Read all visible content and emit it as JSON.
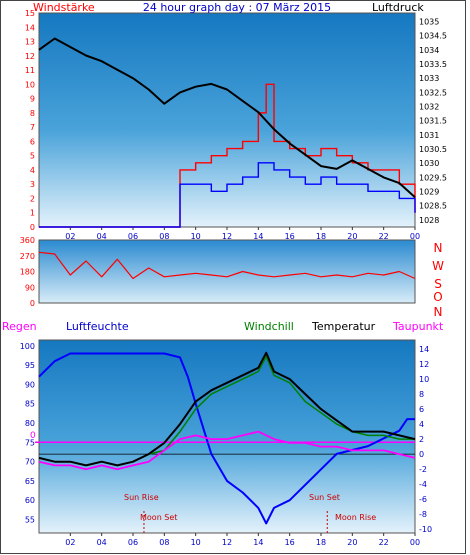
{
  "top_labels": {
    "left": "Windstärke",
    "center": "24 hour graph day : 07 März 2015",
    "right": "Luftdruck"
  },
  "mid_labels": {
    "compass": [
      "N",
      "W",
      "S",
      "O",
      "N"
    ]
  },
  "bottom_labels": {
    "regen": "Regen",
    "luftfeuchte": "Luftfeuchte",
    "windchill": "Windchill",
    "temperatur": "Temperatur",
    "taupunkt": "Taupunkt"
  },
  "annotations": {
    "sun_rise": "Sun Rise",
    "sun_set": "Sun Set",
    "moon_set": "Moon Set",
    "moon_rise": "Moon Rise",
    "zero_mark": "0"
  },
  "colors": {
    "wind_avg": "#ff0000",
    "gust": "#0000ff",
    "pressure": "#000000",
    "dir": "#ff0000",
    "humidity": "#0000ff",
    "windchill": "#008000",
    "temperature": "#000000",
    "dewpoint": "#ff00ff",
    "zero_line": "#ff00ff"
  },
  "chart_data": [
    {
      "type": "line",
      "title": "24 hour graph day : 07 März 2015",
      "x_ticks": [
        "02",
        "04",
        "06",
        "08",
        "10",
        "12",
        "14",
        "16",
        "18",
        "20",
        "22",
        "00"
      ],
      "y_left": {
        "label": "Windstärke",
        "ticks": [
          0,
          1,
          2,
          3,
          4,
          5,
          6,
          7,
          8,
          9,
          10,
          11,
          12,
          13,
          14,
          15
        ],
        "lim": [
          0,
          15
        ]
      },
      "y_right": {
        "label": "Luftdruck",
        "ticks": [
          1028,
          1028.5,
          1029,
          1029.5,
          1030,
          1030.5,
          1031,
          1031.5,
          1032,
          1032.5,
          1033,
          1033.5,
          1034,
          1034.5,
          1035
        ],
        "lim": [
          1027.75,
          1035.3
        ]
      },
      "series": [
        {
          "name": "Luftdruck",
          "x": [
            0,
            1,
            2,
            3,
            4,
            5,
            6,
            7,
            8,
            9,
            10,
            11,
            12,
            13,
            14,
            15,
            16,
            17,
            18,
            19,
            20,
            21,
            22,
            23,
            24
          ],
          "values": [
            1034.0,
            1034.4,
            1034.1,
            1033.8,
            1033.6,
            1033.3,
            1033.0,
            1032.6,
            1032.1,
            1032.5,
            1032.7,
            1032.8,
            1032.6,
            1032.2,
            1031.8,
            1031.2,
            1030.7,
            1030.3,
            1029.9,
            1029.8,
            1030.1,
            1029.8,
            1029.5,
            1029.3,
            1028.8
          ]
        },
        {
          "name": "Windstärke",
          "x": [
            0,
            8.5,
            9,
            10,
            11,
            12,
            13,
            14,
            14.5,
            15,
            16,
            17,
            18,
            19,
            20,
            21,
            22,
            23,
            24
          ],
          "values": [
            0,
            0,
            4,
            4.5,
            5,
            5.5,
            6,
            8,
            10,
            6,
            5.5,
            5,
            5.5,
            5,
            4.5,
            4,
            4,
            3,
            1
          ]
        },
        {
          "name": "Böen",
          "x": [
            0,
            8.5,
            9,
            10,
            11,
            12,
            13,
            14,
            15,
            16,
            17,
            18,
            19,
            20,
            21,
            22,
            23,
            24
          ],
          "values": [
            0,
            0,
            3,
            3,
            2.5,
            3,
            3.5,
            4.5,
            4,
            3.5,
            3,
            3.5,
            3,
            3,
            2.5,
            2.5,
            2,
            1
          ]
        }
      ]
    },
    {
      "type": "scatter",
      "y_left": {
        "ticks": [
          0,
          90,
          180,
          270,
          360
        ],
        "lim": [
          0,
          360
        ]
      },
      "y_right_labels": [
        "N",
        "W",
        "S",
        "O",
        "N"
      ],
      "series": [
        {
          "name": "Windrichtung",
          "x": [
            0,
            1,
            2,
            3,
            4,
            5,
            6,
            7,
            8,
            9,
            10,
            11,
            12,
            13,
            14,
            15,
            16,
            17,
            18,
            19,
            20,
            21,
            22,
            23,
            24
          ],
          "values": [
            290,
            280,
            160,
            240,
            150,
            250,
            140,
            200,
            150,
            160,
            170,
            160,
            150,
            180,
            160,
            150,
            160,
            170,
            150,
            160,
            150,
            170,
            160,
            180,
            140
          ]
        }
      ]
    },
    {
      "type": "line",
      "x_ticks": [
        "02",
        "04",
        "06",
        "08",
        "10",
        "12",
        "14",
        "16",
        "18",
        "20",
        "22",
        "00"
      ],
      "y_left": {
        "label": "Luftfeuchte",
        "ticks": [
          55,
          60,
          65,
          70,
          75,
          80,
          85,
          90,
          95,
          100
        ],
        "lim": [
          51.5,
          101.5
        ]
      },
      "y_right": {
        "label": "Temperatur",
        "ticks": [
          -10,
          -8,
          -6,
          -4,
          -2,
          0,
          2,
          4,
          6,
          8,
          10,
          12,
          14
        ],
        "lim": [
          -10.5,
          15.2
        ]
      },
      "series": [
        {
          "name": "Luftfeuchte",
          "axis": "left",
          "x": [
            0,
            1,
            2,
            3,
            4,
            5,
            6,
            7,
            8,
            9,
            9.5,
            10,
            11,
            12,
            13,
            14,
            14.5,
            15,
            16,
            17,
            18,
            19,
            20,
            21,
            22,
            23,
            23.5,
            24
          ],
          "values": [
            92,
            96,
            98,
            98,
            98,
            98,
            98,
            98,
            98,
            97,
            92,
            85,
            72,
            65,
            62,
            58,
            54,
            58,
            60,
            64,
            68,
            72,
            73,
            74,
            76,
            78,
            81,
            81
          ]
        },
        {
          "name": "Temperatur",
          "axis": "right",
          "x": [
            0,
            1,
            2,
            3,
            4,
            5,
            6,
            7,
            8,
            9,
            10,
            11,
            12,
            13,
            14,
            14.5,
            15,
            16,
            17,
            18,
            19,
            20,
            21,
            22,
            23,
            24
          ],
          "values": [
            -0.5,
            -1,
            -1,
            -1.5,
            -1,
            -1.5,
            -1,
            0,
            1.5,
            4,
            7,
            8.5,
            9.5,
            10.5,
            11.5,
            13.5,
            11,
            10,
            8,
            6,
            4.5,
            3,
            3,
            3,
            2.5,
            2
          ]
        },
        {
          "name": "Windchill",
          "axis": "right",
          "x": [
            0,
            1,
            2,
            3,
            4,
            5,
            6,
            7,
            8,
            9,
            10,
            11,
            12,
            13,
            14,
            14.5,
            15,
            16,
            17,
            18,
            19,
            20,
            21,
            22,
            23,
            24
          ],
          "values": [
            -0.5,
            -1,
            -1,
            -1.5,
            -1,
            -1.5,
            -1,
            0,
            0.5,
            3,
            6,
            8,
            9,
            10,
            11,
            13,
            10.5,
            9.5,
            7,
            5.5,
            4,
            3,
            2.5,
            2.5,
            2,
            2
          ]
        },
        {
          "name": "Taupunkt",
          "axis": "right",
          "x": [
            0,
            1,
            2,
            3,
            4,
            5,
            6,
            7,
            8,
            9,
            10,
            11,
            12,
            13,
            14,
            15,
            16,
            17,
            18,
            19,
            20,
            21,
            22,
            23,
            24
          ],
          "values": [
            -1,
            -1.5,
            -1.5,
            -2,
            -1.5,
            -2,
            -1.5,
            -1,
            0.5,
            2,
            2.5,
            2,
            2,
            2.5,
            3,
            2,
            1.5,
            1.5,
            1,
            1,
            0.5,
            0.5,
            0.5,
            0,
            -0.5
          ]
        }
      ]
    }
  ]
}
